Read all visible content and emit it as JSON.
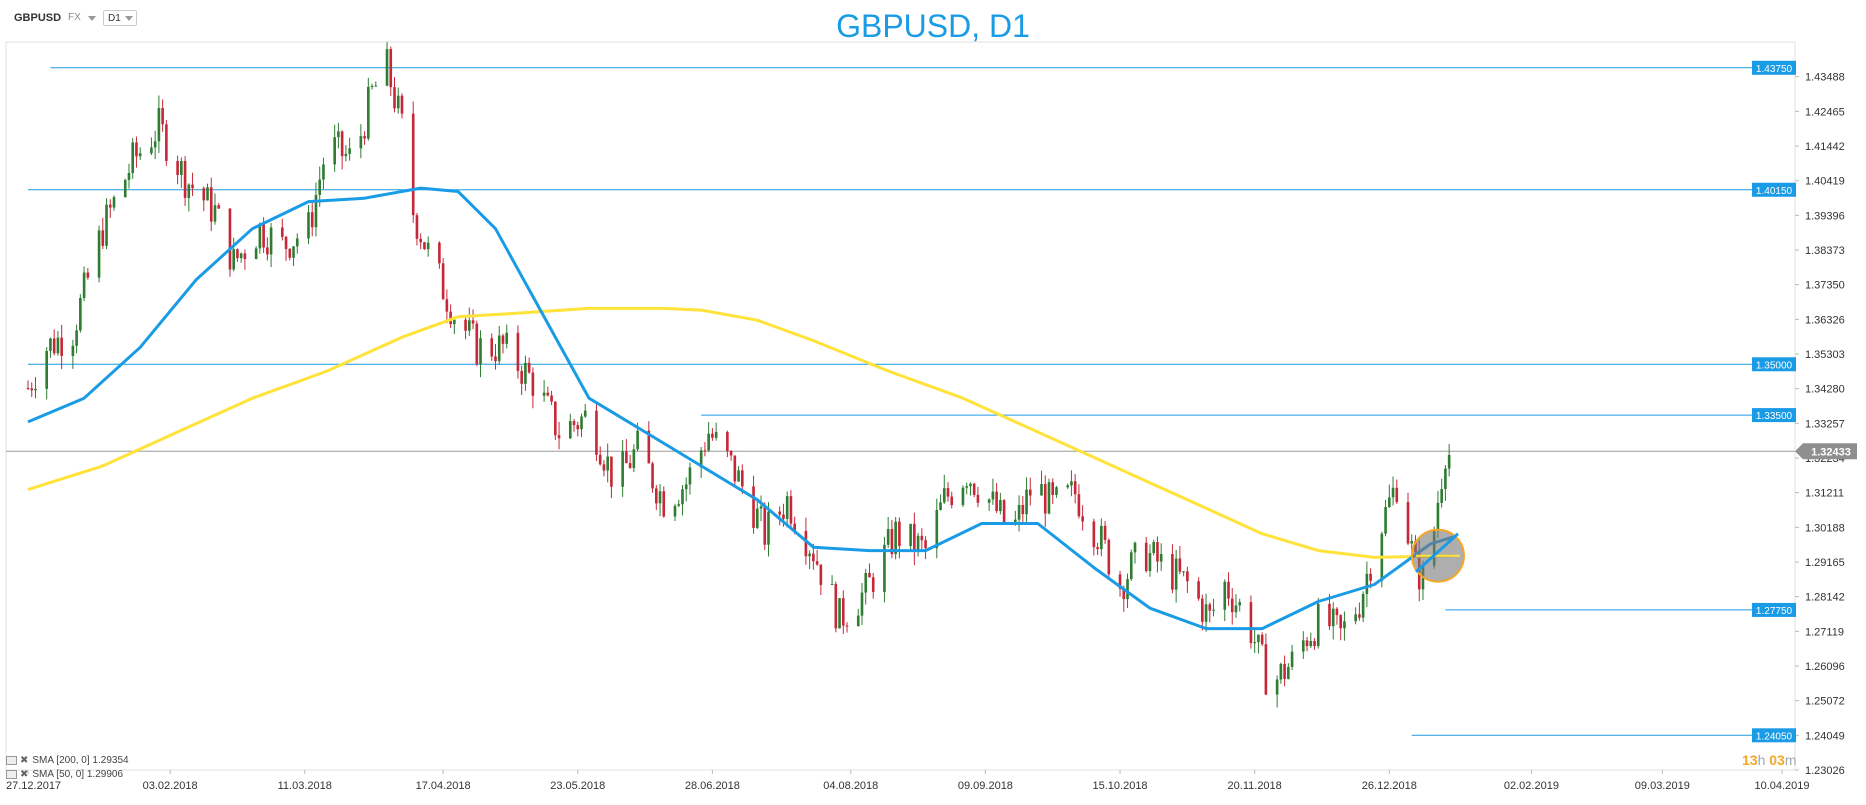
{
  "toolbar": {
    "symbol": "GBPUSD",
    "market": "FX",
    "timeframe": "D1"
  },
  "legend": [
    {
      "label": "SMA [200, 0] 1.29354"
    },
    {
      "label": "SMA [50, 0] 1.29906"
    }
  ],
  "timer": {
    "hours": "13",
    "hours_unit": "h",
    "minutes": "03",
    "minutes_unit": "m"
  },
  "colors": {
    "bull": "#2e7d32",
    "bear": "#c62839",
    "sma50": "#1a9be6",
    "sma200": "#ffe23a",
    "level": "#1a9be6",
    "price_tag": "#8f8f8f"
  },
  "chart_data": {
    "type": "candlestick",
    "title": "GBPUSD, D1",
    "ylim": [
      1.23026,
      1.44511
    ],
    "yticks": [
      "1.43488",
      "1.42465",
      "1.41442",
      "1.40419",
      "1.39396",
      "1.38373",
      "1.37350",
      "1.36326",
      "1.35303",
      "1.34280",
      "1.33257",
      "1.32234",
      "1.31211",
      "1.30188",
      "1.29165",
      "1.28142",
      "1.27119",
      "1.26096",
      "1.25072",
      "1.24049",
      "1.23026"
    ],
    "xticks": [
      "27.12.2017",
      "03.02.2018",
      "11.03.2018",
      "17.04.2018",
      "23.05.2018",
      "28.06.2018",
      "04.08.2018",
      "09.09.2018",
      "15.10.2018",
      "20.11.2018",
      "26.12.2018",
      "02.02.2019",
      "09.03.2019",
      "10.04.2019"
    ],
    "x_range": [
      "27.12.2017",
      "10.04.2019"
    ],
    "current_price": "1.32433",
    "levels": [
      {
        "value": 1.4375,
        "label": "1.43750",
        "x_start": "02.01.2018"
      },
      {
        "value": 1.4015,
        "label": "1.40150",
        "x_start": "27.12.2017"
      },
      {
        "value": 1.35,
        "label": "1.35000",
        "x_start": "27.12.2017"
      },
      {
        "value": 1.335,
        "label": "1.33500",
        "x_start": "25.06.2018"
      },
      {
        "value": 1.2775,
        "label": "1.27750",
        "x_start": "10.01.2019"
      },
      {
        "value": 1.2405,
        "label": "1.24050",
        "x_start": "01.01.2019"
      }
    ],
    "path_days": [
      0,
      5,
      12,
      20,
      28,
      35,
      42,
      50,
      55,
      62,
      68,
      75,
      80,
      87,
      92,
      96,
      100,
      103,
      108,
      114,
      120,
      127,
      135,
      142,
      150,
      157,
      163,
      170,
      176,
      182,
      188,
      193,
      197,
      203,
      210,
      217,
      224,
      232,
      240,
      245,
      251,
      257,
      263,
      269,
      274,
      280,
      286,
      292,
      298,
      304,
      310,
      316,
      320,
      326,
      332,
      338,
      342,
      346,
      351,
      356,
      361,
      366,
      371,
      374,
      377,
      379,
      381
    ],
    "path_close": [
      1.343,
      1.355,
      1.36,
      1.39,
      1.41,
      1.42,
      1.405,
      1.395,
      1.38,
      1.39,
      1.385,
      1.39,
      1.415,
      1.41,
      1.43,
      1.4375,
      1.42,
      1.395,
      1.38,
      1.365,
      1.355,
      1.355,
      1.345,
      1.33,
      1.335,
      1.315,
      1.325,
      1.31,
      1.315,
      1.33,
      1.32,
      1.31,
      1.3,
      1.31,
      1.295,
      1.275,
      1.283,
      1.3,
      1.295,
      1.31,
      1.318,
      1.31,
      1.3,
      1.315,
      1.308,
      1.312,
      1.3,
      1.285,
      1.295,
      1.29,
      1.285,
      1.275,
      1.285,
      1.275,
      1.255,
      1.262,
      1.27,
      1.275,
      1.27,
      1.28,
      1.3,
      1.315,
      1.29,
      1.285,
      1.31,
      1.325,
      1.322
    ],
    "sma50": {
      "name": "SMA [50, 0]",
      "value": "1.29906",
      "days": [
        0,
        15,
        30,
        45,
        60,
        75,
        90,
        105,
        115,
        125,
        135,
        150,
        165,
        180,
        195,
        210,
        225,
        240,
        255,
        270,
        285,
        300,
        315,
        330,
        345,
        360,
        375,
        381
      ],
      "values": [
        1.333,
        1.34,
        1.355,
        1.375,
        1.39,
        1.398,
        1.399,
        1.402,
        1.401,
        1.39,
        1.37,
        1.34,
        1.33,
        1.32,
        1.31,
        1.296,
        1.295,
        1.295,
        1.303,
        1.303,
        1.29,
        1.278,
        1.272,
        1.272,
        1.28,
        1.285,
        1.297,
        1.299
      ]
    },
    "sma200": {
      "name": "SMA [200, 0]",
      "value": "1.29354",
      "days": [
        0,
        20,
        40,
        60,
        80,
        100,
        115,
        130,
        150,
        170,
        180,
        195,
        210,
        230,
        250,
        270,
        290,
        310,
        330,
        345,
        360,
        381
      ],
      "values": [
        1.313,
        1.32,
        1.33,
        1.34,
        1.348,
        1.358,
        1.364,
        1.365,
        1.3665,
        1.3665,
        1.366,
        1.363,
        1.357,
        1.348,
        1.34,
        1.33,
        1.32,
        1.31,
        1.3,
        1.295,
        1.293,
        1.2935
      ]
    }
  }
}
